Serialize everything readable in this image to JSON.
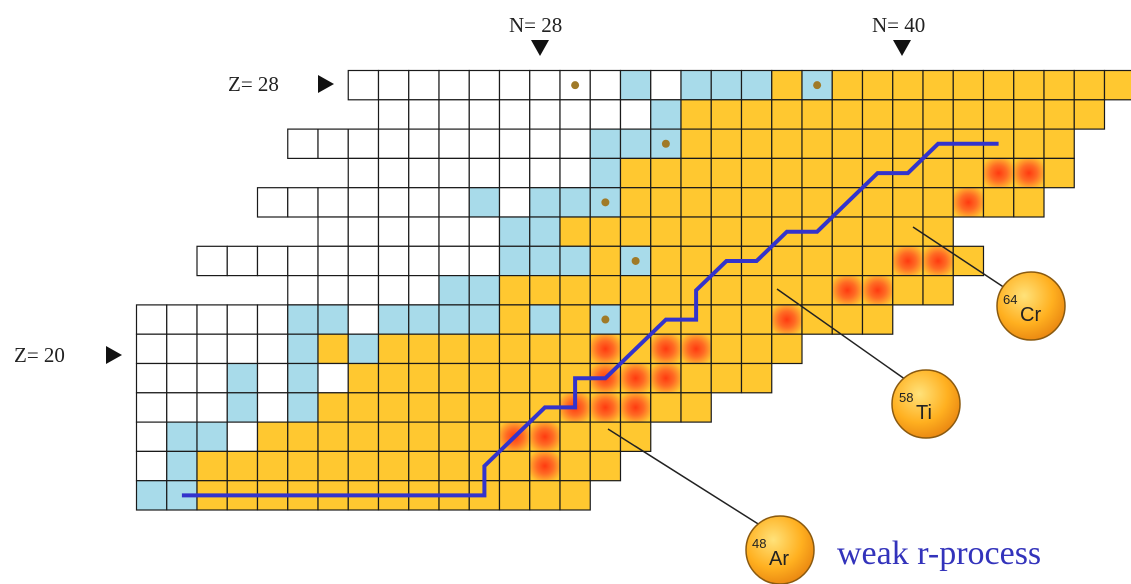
{
  "title": "",
  "markers": {
    "n28": "N= 28",
    "n40": "N= 40",
    "z28": "Z= 28",
    "z20": "Z= 20"
  },
  "legend_caption": "weak r-process",
  "isotopes": [
    {
      "mass": "64",
      "element": "Cr"
    },
    {
      "mass": "58",
      "element": "Ti"
    },
    {
      "mass": "48",
      "element": "Ar"
    }
  ],
  "colors": {
    "white": "#ffffff",
    "blue": "#a8dbea",
    "yellow": "#ffc830",
    "red": "#ff4a1a",
    "grid_line": "#1a1a1a",
    "path": "#3333cc",
    "magic_dot": "#a07a28",
    "caption": "#3333bb"
  },
  "chart_data": {
    "type": "heatmap",
    "title": "",
    "xlabel": "",
    "ylabel": "",
    "cell_legend": {
      "W": "white",
      "B": "blue",
      "Y": "yellow",
      "R": "yellow with red glow",
      "D": "blue with magic dot",
      "E": "white with magic dot"
    },
    "magic_numbers": {
      "N": [
        28,
        40
      ],
      "Z": [
        20,
        28
      ]
    },
    "rows": [
      {
        "Z": 28,
        "N_start": 23,
        "cells": "WWWWWWWEWBWBBBYDYYYYYYYYYY"
      },
      {
        "Z": 27,
        "N_start": 24,
        "cells": "WWWWWWWWWBYYYYYYYYYYYYYY"
      },
      {
        "Z": 26,
        "N_start": 21,
        "cells": "WWWWWWWWWWBBDYYYYYYYYYYYYY"
      },
      {
        "Z": 25,
        "N_start": 23,
        "cells": "WWWWWWWWBYYYYYYYYYYYYRRY"
      },
      {
        "Z": 24,
        "N_start": 20,
        "cells": "WWWWWWWBWBBDYYYYYYYYYYYRYY"
      },
      {
        "Z": 23,
        "N_start": 22,
        "cells": "WWWWWWBBYYYYYYYYYYYYY"
      },
      {
        "Z": 22,
        "N_start": 18,
        "cells": "WWWWWWWWWWBBBYDYYYYYYYYRRY"
      },
      {
        "Z": 21,
        "N_start": 21,
        "cells": "WWWWWBBYYYYYYYYYYYRRYY"
      },
      {
        "Z": 20,
        "N_start": 16,
        "cells": "WWWWWBBWBBBBYBYDYYYYYRYYY"
      },
      {
        "Z": 19,
        "N_start": 16,
        "cells": "WWWWWBYBYYYYYYYRYRRYYY"
      },
      {
        "Z": 18,
        "N_start": 16,
        "cells": "WWWBWBWYYYYYYYYRRRYYY"
      },
      {
        "Z": 17,
        "N_start": 16,
        "cells": "WWWBWBYYYYYYYYRRRYY"
      },
      {
        "Z": 16,
        "N_start": 16,
        "cells": "WBBWYYYYYYYYRRYYY"
      },
      {
        "Z": 15,
        "N_start": 16,
        "cells": "WBYYYYYYYYYYYRYY"
      },
      {
        "Z": 14,
        "N_start": 16,
        "cells": "BBYYYYYYYYYYYYY"
      }
    ],
    "r_process_path": [
      [
        17,
        14
      ],
      [
        27,
        14
      ],
      [
        27,
        15
      ],
      [
        28,
        16
      ],
      [
        29,
        17
      ],
      [
        30,
        17
      ],
      [
        30,
        18
      ],
      [
        31,
        18
      ],
      [
        32,
        19
      ],
      [
        33,
        20
      ],
      [
        34,
        20
      ],
      [
        34,
        21
      ],
      [
        35,
        22
      ],
      [
        36,
        22
      ],
      [
        37,
        23
      ],
      [
        38,
        23
      ],
      [
        39,
        24
      ],
      [
        40,
        25
      ],
      [
        41,
        25
      ],
      [
        42,
        26
      ],
      [
        44,
        26
      ]
    ]
  }
}
